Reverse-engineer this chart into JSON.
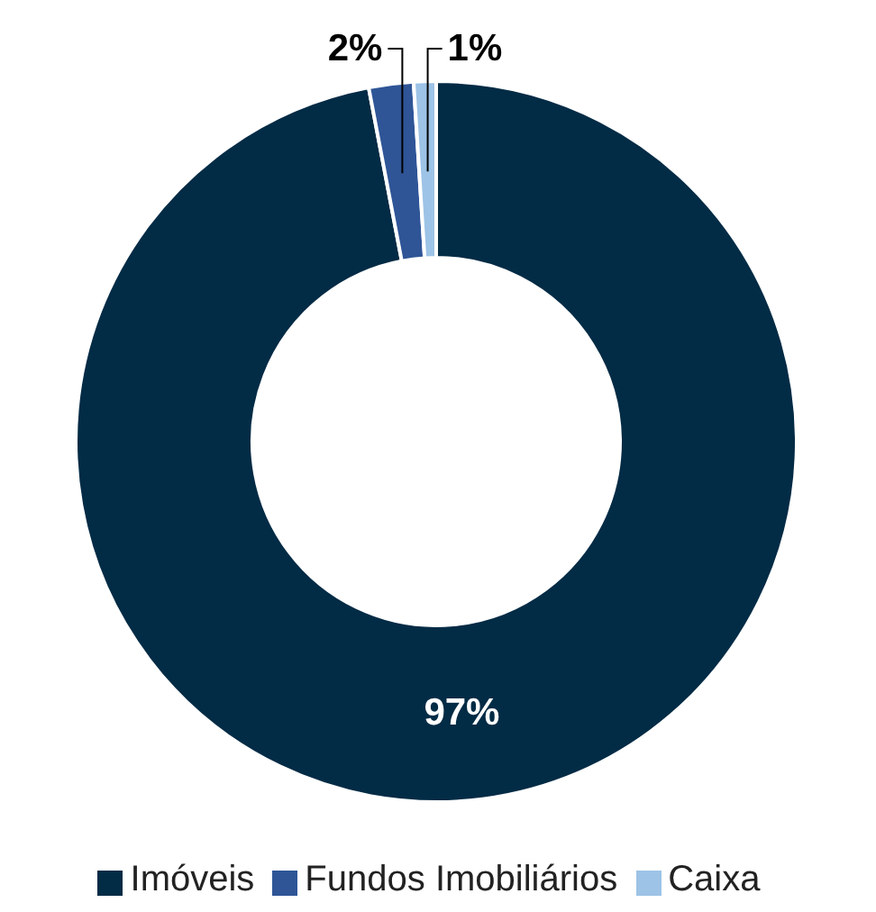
{
  "chart_data": {
    "type": "donut",
    "categories": [
      "Imóveis",
      "Fundos Imobiliários",
      "Caixa"
    ],
    "values": [
      97,
      2,
      1
    ],
    "colors": [
      "#022b45",
      "#2f5597",
      "#9dc3e6"
    ],
    "value_labels": [
      "97%",
      "2%",
      "1%"
    ],
    "legend": "bottom"
  }
}
